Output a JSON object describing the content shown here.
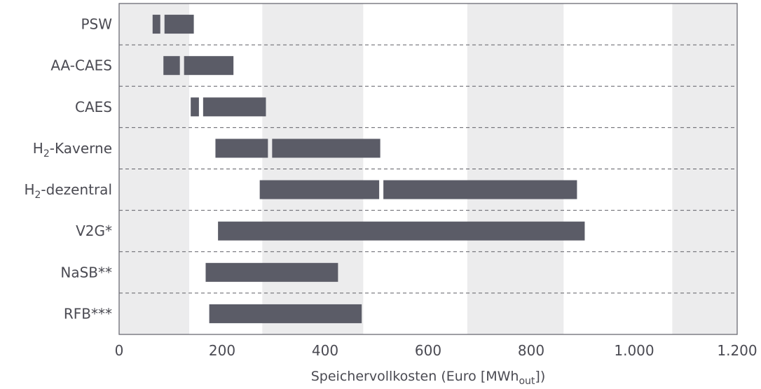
{
  "chart_data": {
    "type": "bar",
    "orientation": "horizontal-range",
    "title": "",
    "xlabel": {
      "main": "Speichervollkosten (Euro [MWh",
      "sub": "out",
      "end": "])"
    },
    "xlim": [
      0,
      1200
    ],
    "x_ticks": [
      {
        "value": 0,
        "label": "0"
      },
      {
        "value": 200,
        "label": "200"
      },
      {
        "value": 400,
        "label": "400"
      },
      {
        "value": 600,
        "label": "600"
      },
      {
        "value": 800,
        "label": "800"
      },
      {
        "value": 1000,
        "label": "1.000"
      },
      {
        "value": 1200,
        "label": "1.200"
      }
    ],
    "background_bands": [
      [
        0,
        136
      ],
      [
        278,
        474
      ],
      [
        676,
        863
      ],
      [
        1074,
        1200
      ]
    ],
    "band_color": "#ececed",
    "bar_color": "#5b5c67",
    "grid": "dashed row separators",
    "categories": [
      {
        "label": "PSW",
        "label_sub": "",
        "label_rest": "",
        "min": 65,
        "max": 145,
        "split": 84
      },
      {
        "label": "AA-CAES",
        "label_sub": "",
        "label_rest": "",
        "min": 86,
        "max": 222,
        "split": 122
      },
      {
        "label": "CAES",
        "label_sub": "",
        "label_rest": "",
        "min": 139,
        "max": 285,
        "split": 159
      },
      {
        "label": "H",
        "label_sub": "2",
        "label_rest": "-Kaverne",
        "min": 187,
        "max": 507,
        "split": 293
      },
      {
        "label": "H",
        "label_sub": "2",
        "label_rest": "-dezentral",
        "min": 273,
        "max": 889,
        "split": 509
      },
      {
        "label": "V2G*",
        "label_sub": "",
        "label_rest": "",
        "min": 192,
        "max": 904,
        "split": null
      },
      {
        "label": "NaSB**",
        "label_sub": "",
        "label_rest": "",
        "min": 168,
        "max": 425,
        "split": null
      },
      {
        "label": "RFB***",
        "label_sub": "",
        "label_rest": "",
        "min": 175,
        "max": 471,
        "split": null
      }
    ]
  }
}
